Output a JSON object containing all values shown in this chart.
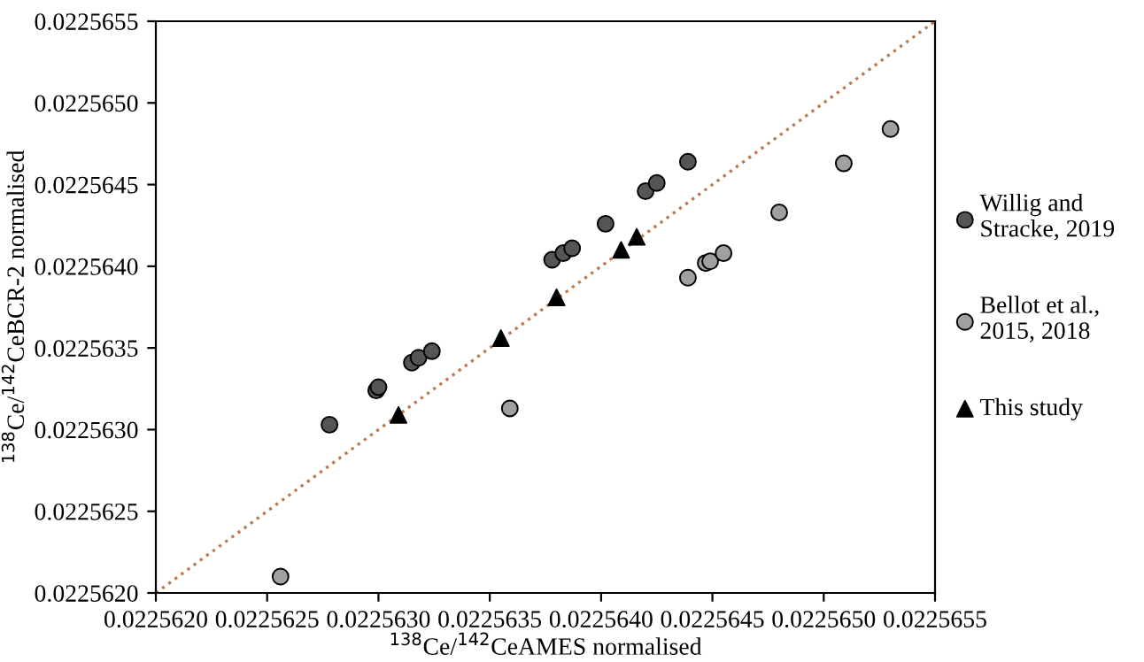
{
  "chart_data": {
    "type": "scatter",
    "xlabel": "$^{138}$Ce/$^{142}$CeAMES normalised",
    "ylabel": "$^{138}$Ce/$^{142}$CeBCR-2 normalised",
    "xlim": [
      0.022562,
      0.0225655
    ],
    "ylim": [
      0.022562,
      0.0225655
    ],
    "xticks": [
      {
        "value": 0.022562,
        "label": "0.0225620"
      },
      {
        "value": 0.0225625,
        "label": "0.0225625"
      },
      {
        "value": 0.022563,
        "label": "0.0225630"
      },
      {
        "value": 0.0225635,
        "label": "0.0225635"
      },
      {
        "value": 0.022564,
        "label": "0.0225640"
      },
      {
        "value": 0.0225645,
        "label": "0.0225645"
      },
      {
        "value": 0.022565,
        "label": "0.0225650"
      },
      {
        "value": 0.0225655,
        "label": "0.0225655"
      }
    ],
    "yticks": [
      {
        "value": 0.022562,
        "label": "0.0225620"
      },
      {
        "value": 0.0225625,
        "label": "0.0225625"
      },
      {
        "value": 0.022563,
        "label": "0.0225630"
      },
      {
        "value": 0.0225635,
        "label": "0.0225635"
      },
      {
        "value": 0.022564,
        "label": "0.0225640"
      },
      {
        "value": 0.0225645,
        "label": "0.0225645"
      },
      {
        "value": 0.022565,
        "label": "0.0225650"
      },
      {
        "value": 0.0225655,
        "label": "0.0225655"
      }
    ],
    "grid": false,
    "legend": "right",
    "series": [
      {
        "type": "line",
        "color": "#c07a50",
        "line_style": "dotted",
        "marker": "none",
        "x": [
          0.022562,
          0.0225655
        ],
        "values": [
          0.022562,
          0.0225655
        ]
      },
      {
        "name": "Willig and\nStracke, 2019",
        "color": "#555555",
        "marker": "circle",
        "x": [
          0.02256278,
          0.02256299,
          0.022563,
          0.02256315,
          0.02256318,
          0.02256324,
          0.02256378,
          0.02256383,
          0.02256387,
          0.02256402,
          0.0225642,
          0.02256425,
          0.02256439
        ],
        "values": [
          0.02256303,
          0.02256324,
          0.02256326,
          0.02256341,
          0.02256344,
          0.02256348,
          0.02256404,
          0.02256408,
          0.02256411,
          0.02256426,
          0.02256446,
          0.02256451,
          0.02256464
        ]
      },
      {
        "name": "Bellot et al.,\n2015, 2018",
        "color": "#a0a0a0",
        "marker": "circle",
        "x": [
          0.02256256,
          0.02256359,
          0.02256439,
          0.02256447,
          0.02256449,
          0.02256455,
          0.0225648,
          0.02256509,
          0.0225653
        ],
        "values": [
          0.0225621,
          0.02256313,
          0.02256393,
          0.02256402,
          0.02256403,
          0.02256408,
          0.02256433,
          0.02256463,
          0.02256484
        ]
      },
      {
        "name": "This study",
        "color": "#000000",
        "marker": "triangle",
        "x": [
          0.02256309,
          0.02256355,
          0.0225638,
          0.02256409,
          0.02256416
        ],
        "values": [
          0.02256309,
          0.02256356,
          0.02256381,
          0.0225641,
          0.02256418
        ]
      }
    ]
  }
}
